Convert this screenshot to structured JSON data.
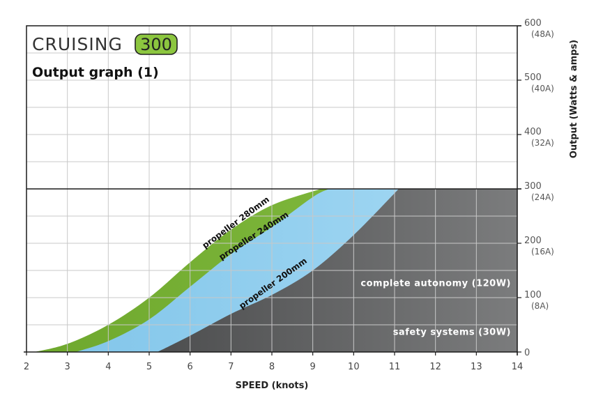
{
  "brand": {
    "name": "CRUISING",
    "model": "300",
    "badge_color": "#8cc63f"
  },
  "chart_data": {
    "type": "area",
    "title": "Output graph (1)",
    "xlabel": "SPEED (knots)",
    "ylabel": "Output (Watts & amps)",
    "xlim": [
      2,
      14
    ],
    "ylim": [
      0,
      600
    ],
    "grid": true,
    "x_ticks": [
      "2",
      "3",
      "4",
      "5",
      "6",
      "7",
      "8",
      "9",
      "10",
      "11",
      "12",
      "13",
      "14"
    ],
    "y_ticks": [
      {
        "value": 0,
        "label": "0",
        "amps": ""
      },
      {
        "value": 100,
        "label": "100",
        "amps": "(8A)"
      },
      {
        "value": 200,
        "label": "200",
        "amps": "(16A)"
      },
      {
        "value": 300,
        "label": "300",
        "amps": "(24A)"
      },
      {
        "value": 400,
        "label": "400",
        "amps": "(32A)"
      },
      {
        "value": 500,
        "label": "500",
        "amps": "(40A)"
      },
      {
        "value": 600,
        "label": "600",
        "amps": "(48A)"
      }
    ],
    "max_output": 300,
    "series": [
      {
        "name": "propeller 280mm",
        "color": "#7db53a",
        "x": [
          2.2,
          3,
          4,
          5,
          6,
          7,
          8,
          9.2
        ],
        "y": [
          0,
          15,
          50,
          100,
          165,
          225,
          270,
          300
        ]
      },
      {
        "name": "propeller 240mm",
        "color": "#8ccdec",
        "x": [
          3.2,
          4,
          5,
          6,
          7,
          8,
          9,
          9.4
        ],
        "y": [
          0,
          20,
          60,
          120,
          180,
          230,
          285,
          300
        ]
      },
      {
        "name": "propeller 200mm",
        "color": "#5f6061",
        "x": [
          5.2,
          6,
          7,
          8,
          9,
          10,
          11.1
        ],
        "y": [
          0,
          30,
          70,
          105,
          150,
          215,
          300
        ]
      }
    ],
    "reference_lines": [
      {
        "label": "complete autonomy (120W)",
        "y": 120,
        "color": "#f08b8b"
      },
      {
        "label": "safety systems (30W)",
        "y": 30,
        "color": "#f08b8b"
      }
    ]
  }
}
